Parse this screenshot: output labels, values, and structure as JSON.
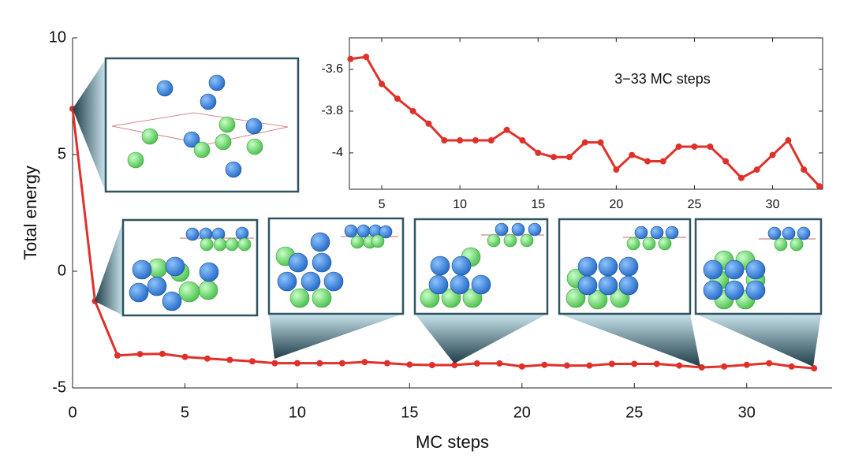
{
  "chart_data": [
    {
      "type": "line",
      "xlabel": "MC steps",
      "ylabel": "Total energy",
      "x": [
        0,
        1,
        2,
        3,
        4,
        5,
        6,
        7,
        8,
        9,
        10,
        11,
        12,
        13,
        14,
        15,
        16,
        17,
        18,
        19,
        20,
        21,
        22,
        23,
        24,
        25,
        26,
        27,
        28,
        29,
        30,
        31,
        32,
        33
      ],
      "series": [
        {
          "color": "#e0302a",
          "values": [
            6.96,
            -1.28,
            -3.61,
            -3.55,
            -3.54,
            -3.67,
            -3.74,
            -3.8,
            -3.86,
            -3.94,
            -3.94,
            -3.94,
            -3.94,
            -3.89,
            -3.94,
            -4.0,
            -4.02,
            -4.02,
            -3.95,
            -3.95,
            -4.08,
            -4.01,
            -4.04,
            -4.04,
            -3.97,
            -3.97,
            -3.97,
            -4.04,
            -4.12,
            -4.08,
            -4.01,
            -3.94,
            -4.08,
            -4.16
          ]
        }
      ],
      "xlim": [
        0,
        33.8
      ],
      "ylim": [
        -5,
        10
      ],
      "xticks": [
        0,
        5,
        10,
        15,
        20,
        25,
        30
      ],
      "yticks": [
        -5,
        0,
        5,
        10
      ]
    },
    {
      "type": "line",
      "annotation": "3−33 MC steps",
      "x": [
        3,
        4,
        5,
        6,
        7,
        8,
        9,
        10,
        11,
        12,
        13,
        14,
        15,
        16,
        17,
        18,
        19,
        20,
        21,
        22,
        23,
        24,
        25,
        26,
        27,
        28,
        29,
        30,
        31,
        32,
        33
      ],
      "series": [
        {
          "color": "#e0302a",
          "values": [
            -3.55,
            -3.54,
            -3.67,
            -3.74,
            -3.8,
            -3.86,
            -3.94,
            -3.94,
            -3.94,
            -3.94,
            -3.89,
            -3.94,
            -4.0,
            -4.02,
            -4.02,
            -3.95,
            -3.95,
            -4.08,
            -4.01,
            -4.04,
            -4.04,
            -3.97,
            -3.97,
            -3.97,
            -4.04,
            -4.12,
            -4.08,
            -4.01,
            -3.94,
            -4.08,
            -4.16
          ]
        }
      ],
      "xlim": [
        2.93,
        33.2
      ],
      "ylim": [
        -4.174,
        -3.449
      ],
      "xticks": [
        5,
        10,
        15,
        20,
        25,
        30
      ],
      "yticks": [
        -4,
        -3.8,
        -3.6
      ]
    }
  ]
}
